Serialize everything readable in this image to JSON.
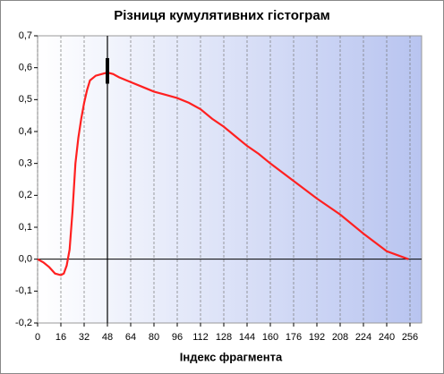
{
  "chart_data": {
    "type": "line",
    "title": "Різниця кумулятивних гістограм",
    "x_label": "Індекс фрагмента",
    "x": [
      0,
      4,
      8,
      12,
      16,
      18,
      20,
      22,
      24,
      26,
      28,
      30,
      32,
      34,
      36,
      40,
      44,
      48,
      52,
      56,
      64,
      72,
      80,
      88,
      96,
      104,
      112,
      120,
      128,
      136,
      144,
      152,
      160,
      176,
      192,
      208,
      224,
      240,
      255
    ],
    "series": [
      {
        "color": "#ff2020",
        "values": [
          0,
          -0.01,
          -0.025,
          -0.045,
          -0.05,
          -0.045,
          -0.02,
          0.03,
          0.15,
          0.3,
          0.38,
          0.44,
          0.49,
          0.53,
          0.56,
          0.575,
          0.58,
          0.585,
          0.58,
          0.57,
          0.555,
          0.54,
          0.525,
          0.515,
          0.505,
          0.49,
          0.47,
          0.44,
          0.415,
          0.385,
          0.355,
          0.33,
          0.3,
          0.245,
          0.19,
          0.14,
          0.08,
          0.025,
          0
        ]
      }
    ],
    "marker": {
      "x": 48,
      "y_low": 0.55,
      "y_high": 0.63
    },
    "xlim": [
      0,
      264
    ],
    "ylim": [
      -0.2,
      0.7
    ],
    "xticks": [
      0,
      16,
      32,
      48,
      64,
      80,
      96,
      112,
      128,
      144,
      160,
      176,
      192,
      208,
      224,
      240,
      256
    ],
    "yticks": [
      {
        "value": -0.2,
        "label": "-0,2"
      },
      {
        "value": -0.1,
        "label": "-0,1"
      },
      {
        "value": 0,
        "label": "0,0"
      },
      {
        "value": 0.1,
        "label": "0,1"
      },
      {
        "value": 0.2,
        "label": "0,2"
      },
      {
        "value": 0.3,
        "label": "0,3"
      },
      {
        "value": 0.4,
        "label": "0,4"
      },
      {
        "value": 0.5,
        "label": "0,5"
      },
      {
        "value": 0.6,
        "label": "0,6"
      },
      {
        "value": 0.7,
        "label": "0,7"
      }
    ],
    "grid": true
  }
}
